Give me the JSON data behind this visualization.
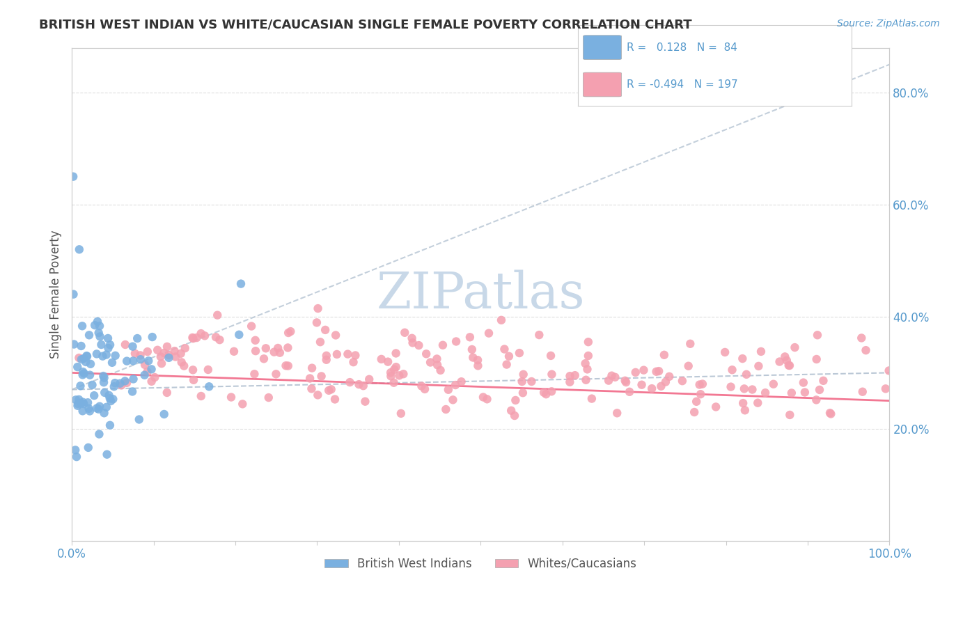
{
  "title": "BRITISH WEST INDIAN VS WHITE/CAUCASIAN SINGLE FEMALE POVERTY CORRELATION CHART",
  "source_text": "Source: ZipAtlas.com",
  "xlabel": "",
  "ylabel": "Single Female Poverty",
  "legend_bottom_labels": [
    "British West Indians",
    "Whites/Caucasians"
  ],
  "r_blue": 0.128,
  "n_blue": 84,
  "r_pink": -0.494,
  "n_pink": 197,
  "blue_color": "#7ab0e0",
  "pink_color": "#f4a0b0",
  "blue_line_color": "#7ab0e0",
  "pink_line_color": "#f06080",
  "title_color": "#333333",
  "axis_color": "#5599cc",
  "watermark_color": "#c8d8e8",
  "background_color": "#ffffff",
  "xlim": [
    0,
    1
  ],
  "ylim": [
    0,
    0.88
  ],
  "blue_seed": 42,
  "pink_seed": 99,
  "figsize": [
    14.06,
    8.92
  ],
  "dpi": 100
}
